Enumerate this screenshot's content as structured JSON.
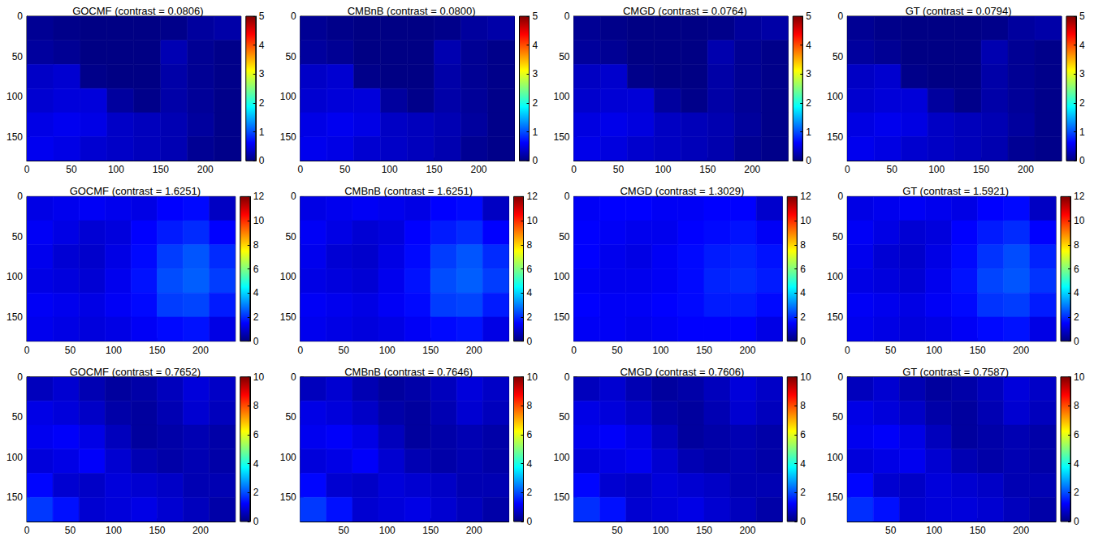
{
  "chart_data": [
    {
      "type": "heatmap",
      "title": "GOCMF (contrast = 0.0806)",
      "grid": false,
      "xlim": [
        0,
        240
      ],
      "xticks": [
        0,
        50,
        100,
        150,
        200
      ],
      "ylim": [
        180,
        0
      ],
      "yticks": [
        0,
        50,
        100,
        150
      ],
      "x": [
        15,
        45,
        75,
        105,
        135,
        165,
        195,
        225
      ],
      "y": [
        15,
        45,
        75,
        105,
        135,
        165
      ],
      "cells": [
        [
          0.1,
          0.05,
          0.02,
          0.02,
          0.02,
          0.05,
          0.15,
          0.2
        ],
        [
          0.15,
          0.1,
          0.02,
          0.02,
          0.02,
          0.25,
          0.1,
          0.05
        ],
        [
          0.35,
          0.4,
          0.05,
          0.02,
          0.02,
          0.2,
          0.1,
          0.05
        ],
        [
          0.4,
          0.45,
          0.45,
          0.15,
          0.05,
          0.2,
          0.12,
          0.05
        ],
        [
          0.5,
          0.55,
          0.5,
          0.35,
          0.3,
          0.25,
          0.15,
          0.05
        ],
        [
          0.55,
          0.5,
          0.4,
          0.35,
          0.3,
          0.25,
          0.1,
          0.05
        ]
      ],
      "colorbar": {
        "range": [
          0,
          5
        ],
        "ticks": [
          0,
          1,
          2,
          3,
          4,
          5
        ]
      }
    },
    {
      "type": "heatmap",
      "title": "CMBnB (contrast = 0.0800)",
      "grid": false,
      "xlim": [
        0,
        240
      ],
      "xticks": [
        0,
        50,
        100,
        150,
        200
      ],
      "ylim": [
        180,
        0
      ],
      "yticks": [
        0,
        50,
        100,
        150
      ],
      "x": [
        15,
        45,
        75,
        105,
        135,
        165,
        195,
        225
      ],
      "y": [
        15,
        45,
        75,
        105,
        135,
        165
      ],
      "cells": [
        [
          0.1,
          0.05,
          0.02,
          0.02,
          0.02,
          0.05,
          0.15,
          0.2
        ],
        [
          0.15,
          0.1,
          0.02,
          0.02,
          0.02,
          0.24,
          0.1,
          0.05
        ],
        [
          0.35,
          0.4,
          0.05,
          0.02,
          0.02,
          0.2,
          0.1,
          0.05
        ],
        [
          0.4,
          0.44,
          0.45,
          0.15,
          0.05,
          0.2,
          0.12,
          0.05
        ],
        [
          0.5,
          0.55,
          0.5,
          0.34,
          0.3,
          0.25,
          0.15,
          0.05
        ],
        [
          0.54,
          0.5,
          0.4,
          0.35,
          0.3,
          0.24,
          0.1,
          0.05
        ]
      ],
      "colorbar": {
        "range": [
          0,
          5
        ],
        "ticks": [
          0,
          1,
          2,
          3,
          4,
          5
        ]
      }
    },
    {
      "type": "heatmap",
      "title": "CMGD (contrast = 0.0764)",
      "grid": false,
      "xlim": [
        0,
        240
      ],
      "xticks": [
        0,
        50,
        100,
        150,
        200
      ],
      "ylim": [
        180,
        0
      ],
      "yticks": [
        0,
        50,
        100,
        150
      ],
      "x": [
        15,
        45,
        75,
        105,
        135,
        165,
        195,
        225
      ],
      "y": [
        15,
        45,
        75,
        105,
        135,
        165
      ],
      "cells": [
        [
          0.1,
          0.05,
          0.02,
          0.02,
          0.02,
          0.05,
          0.14,
          0.19
        ],
        [
          0.14,
          0.1,
          0.02,
          0.02,
          0.02,
          0.23,
          0.1,
          0.05
        ],
        [
          0.33,
          0.38,
          0.05,
          0.02,
          0.02,
          0.19,
          0.1,
          0.05
        ],
        [
          0.38,
          0.42,
          0.43,
          0.15,
          0.05,
          0.19,
          0.11,
          0.05
        ],
        [
          0.48,
          0.52,
          0.47,
          0.33,
          0.28,
          0.24,
          0.14,
          0.05
        ],
        [
          0.52,
          0.47,
          0.38,
          0.33,
          0.28,
          0.23,
          0.1,
          0.05
        ]
      ],
      "colorbar": {
        "range": [
          0,
          5
        ],
        "ticks": [
          0,
          1,
          2,
          3,
          4,
          5
        ]
      }
    },
    {
      "type": "heatmap",
      "title": "GT (contrast = 0.0794)",
      "grid": false,
      "xlim": [
        0,
        240
      ],
      "xticks": [
        0,
        50,
        100,
        150,
        200
      ],
      "ylim": [
        180,
        0
      ],
      "yticks": [
        0,
        50,
        100,
        150
      ],
      "x": [
        15,
        45,
        75,
        105,
        135,
        165,
        195,
        225
      ],
      "y": [
        15,
        45,
        75,
        105,
        135,
        165
      ],
      "cells": [
        [
          0.1,
          0.05,
          0.02,
          0.02,
          0.02,
          0.05,
          0.15,
          0.2
        ],
        [
          0.15,
          0.1,
          0.02,
          0.02,
          0.02,
          0.24,
          0.1,
          0.05
        ],
        [
          0.34,
          0.39,
          0.05,
          0.02,
          0.02,
          0.2,
          0.1,
          0.05
        ],
        [
          0.39,
          0.44,
          0.44,
          0.15,
          0.05,
          0.2,
          0.12,
          0.05
        ],
        [
          0.49,
          0.54,
          0.49,
          0.34,
          0.29,
          0.25,
          0.15,
          0.05
        ],
        [
          0.54,
          0.49,
          0.39,
          0.34,
          0.29,
          0.24,
          0.1,
          0.05
        ]
      ],
      "colorbar": {
        "range": [
          0,
          5
        ],
        "ticks": [
          0,
          1,
          2,
          3,
          4,
          5
        ]
      }
    },
    {
      "type": "heatmap",
      "title": "GOCMF (contrast = 1.6251)",
      "grid": false,
      "xlim": [
        0,
        240
      ],
      "xticks": [
        0,
        50,
        100,
        150,
        200
      ],
      "ylim": [
        180,
        0
      ],
      "yticks": [
        0,
        50,
        100,
        150
      ],
      "x": [
        15,
        45,
        75,
        105,
        135,
        165,
        195,
        225
      ],
      "y": [
        15,
        45,
        75,
        105,
        135,
        165
      ],
      "cells": [
        [
          1.2,
          1.3,
          1.4,
          1.3,
          1.2,
          1.5,
          1.6,
          0.8
        ],
        [
          1.4,
          1.2,
          1.0,
          1.1,
          1.5,
          1.8,
          2.0,
          1.5
        ],
        [
          1.3,
          1.0,
          0.9,
          1.2,
          1.6,
          2.2,
          2.5,
          2.0
        ],
        [
          1.2,
          1.1,
          1.0,
          1.3,
          1.7,
          2.4,
          2.6,
          2.2
        ],
        [
          1.4,
          1.3,
          1.2,
          1.4,
          1.6,
          2.2,
          2.3,
          1.8
        ],
        [
          1.3,
          1.2,
          1.1,
          1.2,
          1.4,
          1.6,
          1.7,
          1.2
        ]
      ],
      "colorbar": {
        "range": [
          0,
          12
        ],
        "ticks": [
          0,
          2,
          4,
          6,
          8,
          10,
          12
        ]
      }
    },
    {
      "type": "heatmap",
      "title": "CMBnB (contrast = 1.6251)",
      "grid": false,
      "xlim": [
        0,
        240
      ],
      "xticks": [
        0,
        50,
        100,
        150,
        200
      ],
      "ylim": [
        180,
        0
      ],
      "yticks": [
        0,
        50,
        100,
        150
      ],
      "x": [
        15,
        45,
        75,
        105,
        135,
        165,
        195,
        225
      ],
      "y": [
        15,
        45,
        75,
        105,
        135,
        165
      ],
      "cells": [
        [
          1.2,
          1.3,
          1.4,
          1.3,
          1.2,
          1.5,
          1.6,
          0.8
        ],
        [
          1.4,
          1.2,
          1.0,
          1.1,
          1.5,
          1.8,
          2.0,
          1.5
        ],
        [
          1.3,
          1.0,
          0.9,
          1.2,
          1.6,
          2.2,
          2.5,
          2.0
        ],
        [
          1.2,
          1.1,
          1.0,
          1.3,
          1.7,
          2.4,
          2.6,
          2.2
        ],
        [
          1.4,
          1.3,
          1.2,
          1.4,
          1.6,
          2.2,
          2.3,
          1.8
        ],
        [
          1.3,
          1.2,
          1.1,
          1.2,
          1.4,
          1.6,
          1.7,
          1.2
        ]
      ],
      "colorbar": {
        "range": [
          0,
          12
        ],
        "ticks": [
          0,
          2,
          4,
          6,
          8,
          10,
          12
        ]
      }
    },
    {
      "type": "heatmap",
      "title": "CMGD (contrast = 1.3029)",
      "grid": false,
      "xlim": [
        0,
        240
      ],
      "xticks": [
        0,
        50,
        100,
        150,
        200
      ],
      "ylim": [
        180,
        0
      ],
      "yticks": [
        0,
        50,
        100,
        150
      ],
      "x": [
        15,
        45,
        75,
        105,
        135,
        165,
        195,
        225
      ],
      "y": [
        15,
        45,
        75,
        105,
        135,
        165
      ],
      "cells": [
        [
          1.4,
          1.5,
          1.5,
          1.4,
          1.4,
          1.5,
          1.5,
          0.9
        ],
        [
          1.5,
          1.4,
          1.3,
          1.3,
          1.5,
          1.6,
          1.7,
          1.4
        ],
        [
          1.5,
          1.3,
          1.2,
          1.4,
          1.6,
          1.8,
          1.9,
          1.7
        ],
        [
          1.4,
          1.3,
          1.3,
          1.4,
          1.6,
          1.9,
          2.0,
          1.8
        ],
        [
          1.5,
          1.4,
          1.4,
          1.5,
          1.6,
          1.8,
          1.8,
          1.6
        ],
        [
          1.4,
          1.4,
          1.3,
          1.4,
          1.5,
          1.5,
          1.5,
          1.2
        ]
      ],
      "colorbar": {
        "range": [
          0,
          12
        ],
        "ticks": [
          0,
          2,
          4,
          6,
          8,
          10,
          12
        ]
      }
    },
    {
      "type": "heatmap",
      "title": "GT (contrast = 1.5921)",
      "grid": false,
      "xlim": [
        0,
        240
      ],
      "xticks": [
        0,
        50,
        100,
        150,
        200
      ],
      "ylim": [
        180,
        0
      ],
      "yticks": [
        0,
        50,
        100,
        150
      ],
      "x": [
        15,
        45,
        75,
        105,
        135,
        165,
        195,
        225
      ],
      "y": [
        15,
        45,
        75,
        105,
        135,
        165
      ],
      "cells": [
        [
          1.2,
          1.3,
          1.4,
          1.3,
          1.2,
          1.5,
          1.6,
          0.8
        ],
        [
          1.4,
          1.2,
          1.0,
          1.1,
          1.5,
          1.8,
          2.0,
          1.5
        ],
        [
          1.3,
          1.0,
          0.9,
          1.2,
          1.6,
          2.1,
          2.4,
          1.9
        ],
        [
          1.2,
          1.1,
          1.0,
          1.3,
          1.7,
          2.3,
          2.5,
          2.1
        ],
        [
          1.4,
          1.3,
          1.2,
          1.4,
          1.6,
          2.1,
          2.2,
          1.8
        ],
        [
          1.3,
          1.2,
          1.1,
          1.2,
          1.4,
          1.6,
          1.7,
          1.2
        ]
      ],
      "colorbar": {
        "range": [
          0,
          12
        ],
        "ticks": [
          0,
          2,
          4,
          6,
          8,
          10,
          12
        ]
      }
    },
    {
      "type": "heatmap",
      "title": "GOCMF (contrast = 0.7652)",
      "grid": false,
      "xlim": [
        0,
        240
      ],
      "xticks": [
        0,
        50,
        100,
        150,
        200
      ],
      "ylim": [
        180,
        0
      ],
      "yticks": [
        0,
        50,
        100,
        150
      ],
      "x": [
        15,
        45,
        75,
        105,
        135,
        165,
        195,
        225
      ],
      "y": [
        15,
        45,
        75,
        105,
        135,
        165
      ],
      "cells": [
        [
          0.6,
          0.8,
          0.5,
          0.3,
          0.4,
          0.6,
          0.9,
          0.7
        ],
        [
          1.0,
          0.9,
          0.7,
          0.4,
          0.3,
          0.5,
          0.8,
          0.6
        ],
        [
          1.1,
          1.2,
          1.0,
          0.6,
          0.3,
          0.4,
          0.5,
          0.4
        ],
        [
          0.9,
          1.0,
          1.2,
          0.8,
          0.5,
          0.4,
          0.5,
          0.4
        ],
        [
          1.3,
          0.8,
          0.7,
          0.9,
          0.8,
          0.7,
          0.5,
          0.5
        ],
        [
          1.8,
          1.4,
          0.8,
          0.9,
          1.0,
          0.8,
          0.6,
          0.4
        ]
      ],
      "colorbar": {
        "range": [
          0,
          10
        ],
        "ticks": [
          0,
          2,
          4,
          6,
          8,
          10
        ]
      }
    },
    {
      "type": "heatmap",
      "title": "CMBnB (contrast = 0.7646)",
      "grid": false,
      "xlim": [
        0,
        240
      ],
      "xticks": [
        50,
        100,
        150,
        200
      ],
      "ylim": [
        180,
        0
      ],
      "yticks": [
        0,
        50,
        100,
        150
      ],
      "x": [
        15,
        45,
        75,
        105,
        135,
        165,
        195,
        225
      ],
      "y": [
        15,
        45,
        75,
        105,
        135,
        165
      ],
      "cells": [
        [
          0.6,
          0.8,
          0.5,
          0.3,
          0.4,
          0.6,
          0.9,
          0.7
        ],
        [
          1.0,
          0.9,
          0.7,
          0.4,
          0.3,
          0.5,
          0.8,
          0.6
        ],
        [
          1.1,
          1.2,
          1.0,
          0.6,
          0.3,
          0.4,
          0.5,
          0.4
        ],
        [
          0.9,
          1.0,
          1.2,
          0.8,
          0.5,
          0.4,
          0.5,
          0.4
        ],
        [
          1.3,
          0.8,
          0.7,
          0.9,
          0.8,
          0.7,
          0.5,
          0.5
        ],
        [
          1.8,
          1.4,
          0.8,
          0.9,
          1.0,
          0.8,
          0.6,
          0.4
        ]
      ],
      "colorbar": {
        "range": [
          0,
          10
        ],
        "ticks": [
          0,
          2,
          4,
          6,
          8,
          10
        ]
      }
    },
    {
      "type": "heatmap",
      "title": "CMGD (contrast = 0.7606)",
      "grid": false,
      "xlim": [
        0,
        240
      ],
      "xticks": [
        50,
        100,
        150,
        200
      ],
      "ylim": [
        180,
        0
      ],
      "yticks": [
        0,
        50,
        100,
        150
      ],
      "x": [
        15,
        45,
        75,
        105,
        135,
        165,
        195,
        225
      ],
      "y": [
        15,
        45,
        75,
        105,
        135,
        165
      ],
      "cells": [
        [
          0.6,
          0.8,
          0.5,
          0.3,
          0.4,
          0.6,
          0.9,
          0.7
        ],
        [
          1.0,
          0.9,
          0.7,
          0.4,
          0.3,
          0.5,
          0.8,
          0.6
        ],
        [
          1.1,
          1.2,
          1.0,
          0.6,
          0.3,
          0.4,
          0.5,
          0.4
        ],
        [
          0.9,
          1.0,
          1.1,
          0.8,
          0.5,
          0.4,
          0.5,
          0.4
        ],
        [
          1.3,
          0.8,
          0.7,
          0.9,
          0.8,
          0.7,
          0.5,
          0.5
        ],
        [
          1.7,
          1.4,
          0.8,
          0.9,
          1.0,
          0.8,
          0.6,
          0.4
        ]
      ],
      "colorbar": {
        "range": [
          0,
          10
        ],
        "ticks": [
          0,
          2,
          4,
          6,
          8,
          10
        ]
      }
    },
    {
      "type": "heatmap",
      "title": "GT (contrast = 0.7587)",
      "grid": false,
      "xlim": [
        0,
        240
      ],
      "xticks": [
        50,
        100,
        150,
        200
      ],
      "ylim": [
        180,
        0
      ],
      "yticks": [
        0,
        50,
        100,
        150
      ],
      "x": [
        15,
        45,
        75,
        105,
        135,
        165,
        195,
        225
      ],
      "y": [
        15,
        45,
        75,
        105,
        135,
        165
      ],
      "cells": [
        [
          0.6,
          0.8,
          0.5,
          0.3,
          0.4,
          0.6,
          0.9,
          0.7
        ],
        [
          1.0,
          0.9,
          0.7,
          0.4,
          0.3,
          0.5,
          0.8,
          0.6
        ],
        [
          1.1,
          1.2,
          1.0,
          0.6,
          0.3,
          0.4,
          0.5,
          0.4
        ],
        [
          0.9,
          1.0,
          1.1,
          0.8,
          0.5,
          0.4,
          0.5,
          0.4
        ],
        [
          1.3,
          0.8,
          0.7,
          0.9,
          0.8,
          0.7,
          0.5,
          0.5
        ],
        [
          1.7,
          1.4,
          0.8,
          0.9,
          0.9,
          0.8,
          0.6,
          0.4
        ]
      ],
      "colorbar": {
        "range": [
          0,
          10
        ],
        "ticks": [
          0,
          2,
          4,
          6,
          8,
          10
        ]
      }
    }
  ]
}
